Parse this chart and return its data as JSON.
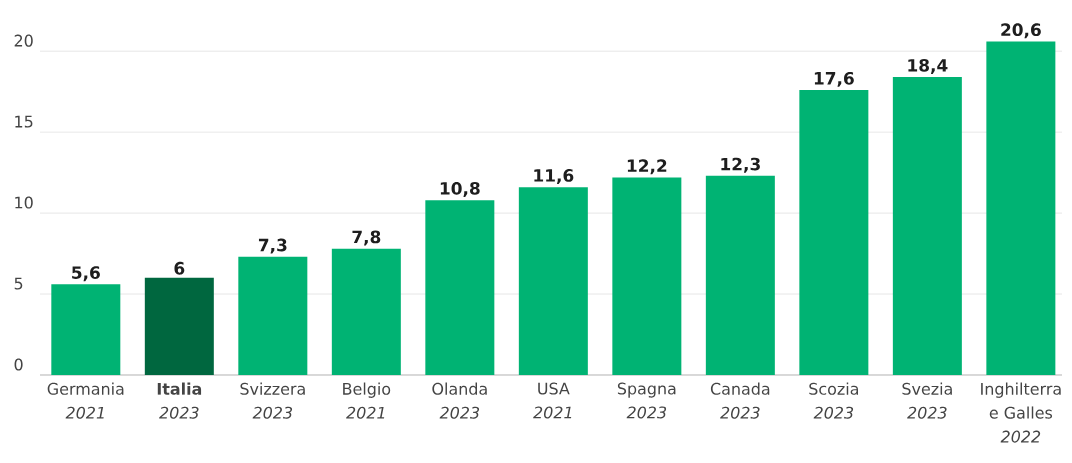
{
  "chart_data": {
    "type": "bar",
    "categories": [
      "Germania\n*2021*",
      "**Italia**\n*2023*",
      "Svizzera\n*2023*",
      "Belgio\n*2021*",
      "Olanda\n*2023*",
      "USA\n*2021*",
      "Spagna\n*2023*",
      "Canada\n*2023*",
      "Scozia\n*2023*",
      "Svezia\n*2023*",
      "Inghilterra\ne Galles\n*2022*"
    ],
    "values": [
      5.6,
      6,
      7.3,
      7.8,
      10.8,
      11.6,
      12.2,
      12.3,
      17.6,
      18.4,
      20.6
    ],
    "colors": [
      "#00b373",
      "#00673f",
      "#00b373",
      "#00b373",
      "#00b373",
      "#00b373",
      "#00b373",
      "#00b373",
      "#00b373",
      "#00b373",
      "#00b373"
    ],
    "value_labels": [
      "5,6",
      "6",
      "7,3",
      "7,8",
      "10,8",
      "11,6",
      "12,2",
      "12,3",
      "17,6",
      "18,4",
      "20,6"
    ],
    "ylim": [
      0,
      20.6
    ],
    "yticks": [
      0,
      5,
      10,
      15,
      20
    ],
    "grid": "y"
  }
}
